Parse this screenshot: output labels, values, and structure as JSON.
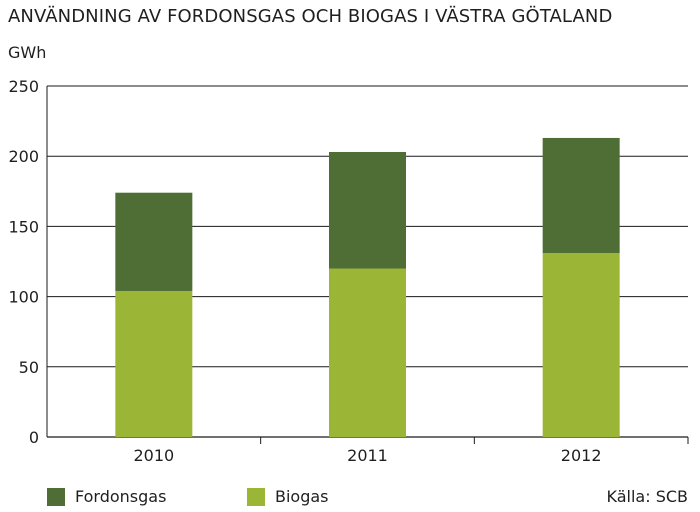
{
  "chart_data": {
    "type": "bar",
    "stacked": true,
    "title": "ANVÄNDNING AV FORDONSGAS OCH BIOGAS I VÄSTRA GÖTALAND",
    "ylabel": "GWh",
    "xlabel": "",
    "categories": [
      "2010",
      "2011",
      "2012"
    ],
    "ylim": [
      0,
      250
    ],
    "yticks": [
      "0",
      "50",
      "100",
      "150",
      "200",
      "250"
    ],
    "grid": true,
    "legend_position": "bottom",
    "series": [
      {
        "name": "Biogas",
        "values": [
          104,
          120,
          131
        ],
        "color": "#9bb536"
      },
      {
        "name": "Fordonsgas",
        "values": [
          70,
          83,
          82
        ],
        "color": "#4f6e35"
      }
    ]
  },
  "legend": {
    "item1": {
      "label": "Fordonsgas",
      "color": "#4f6e35"
    },
    "item2": {
      "label": "Biogas",
      "color": "#9bb536"
    }
  },
  "source": "Källa: SCB"
}
